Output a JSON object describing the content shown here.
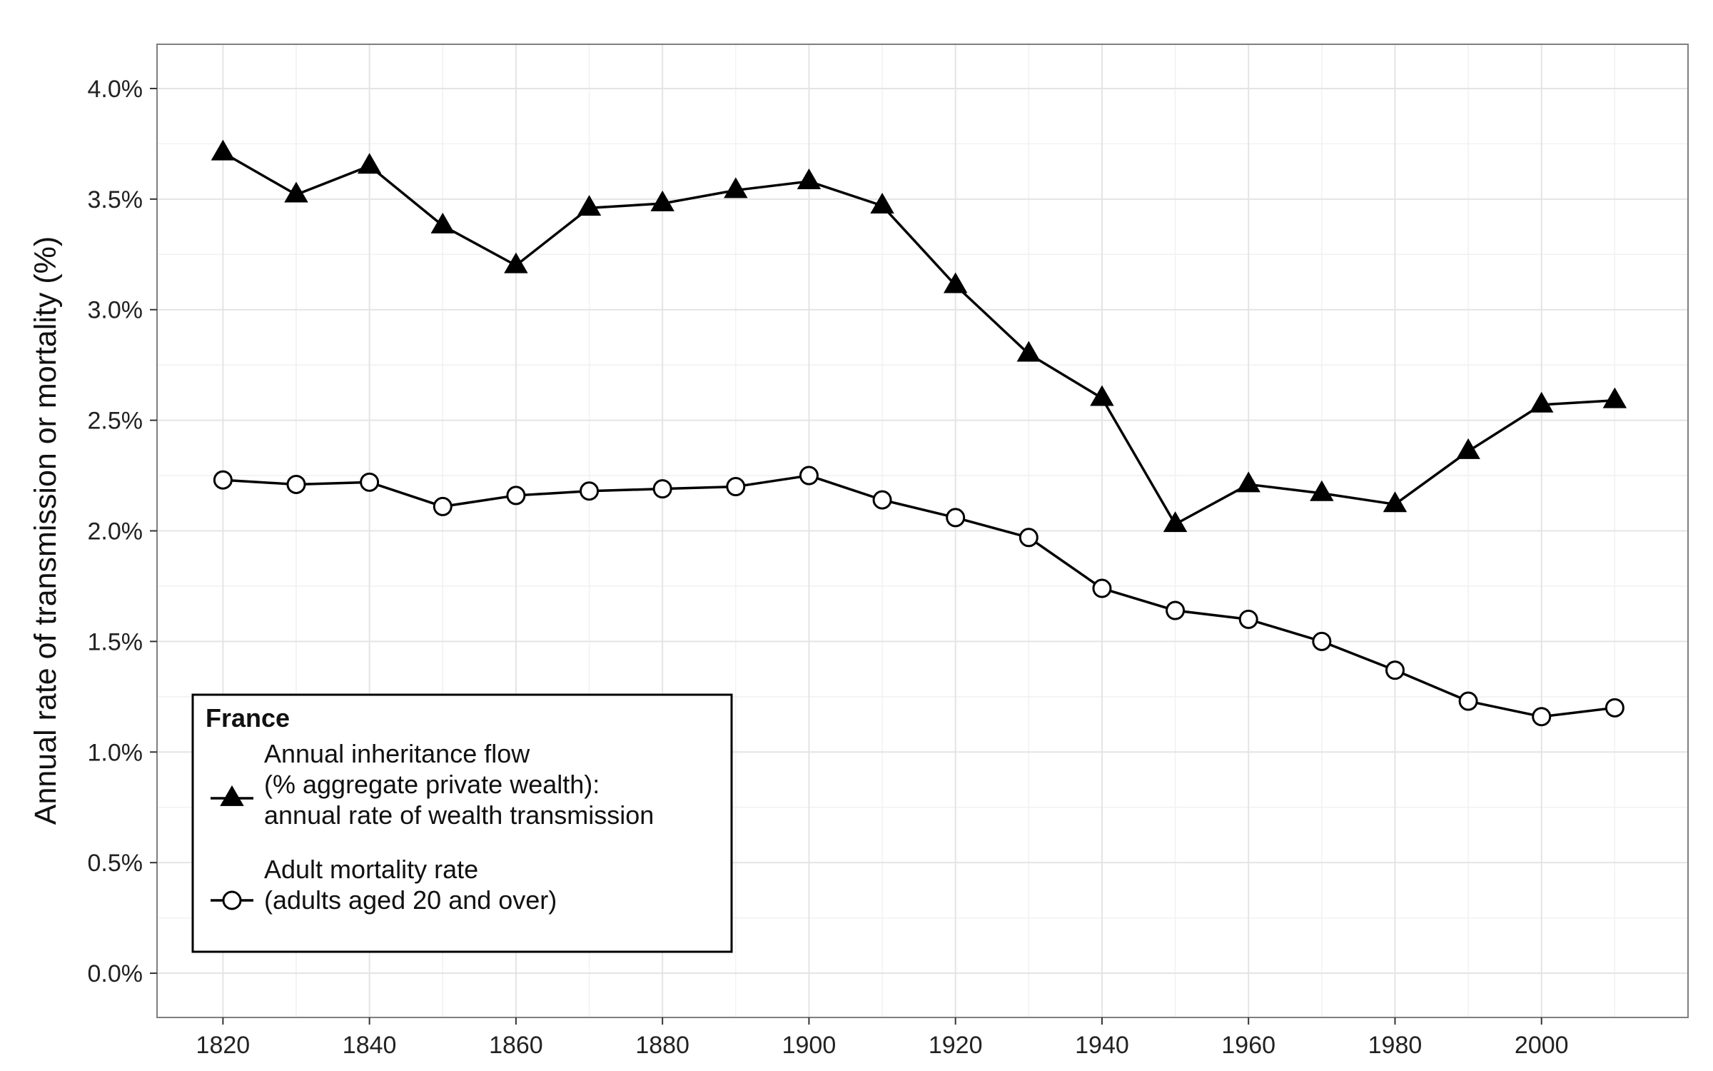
{
  "chart_data": {
    "type": "line",
    "x": [
      1820,
      1830,
      1840,
      1850,
      1860,
      1870,
      1880,
      1890,
      1900,
      1910,
      1920,
      1930,
      1940,
      1950,
      1960,
      1970,
      1980,
      1990,
      2000,
      2010
    ],
    "series": [
      {
        "name_lines": [
          "Annual inheritance flow",
          "(% aggregate private wealth):",
          "annual rate of wealth transmission"
        ],
        "marker": "filled-triangle",
        "values": [
          3.71,
          3.52,
          3.65,
          3.38,
          3.2,
          3.46,
          3.48,
          3.54,
          3.58,
          3.47,
          3.11,
          2.8,
          2.6,
          2.03,
          2.21,
          2.17,
          2.12,
          2.36,
          2.57,
          2.59
        ]
      },
      {
        "name_lines": [
          "Adult mortality rate",
          "(adults aged 20 and over)"
        ],
        "marker": "open-circle",
        "values": [
          2.23,
          2.21,
          2.22,
          2.11,
          2.16,
          2.18,
          2.19,
          2.2,
          2.25,
          2.14,
          2.06,
          1.97,
          1.74,
          1.64,
          1.6,
          1.5,
          1.37,
          1.23,
          1.16,
          1.2
        ]
      }
    ],
    "ylabel": "Annual rate of transmission or mortality (%)",
    "xlabel": "",
    "ylim": [
      -0.2,
      4.2
    ],
    "xlim": [
      1811,
      2020
    ],
    "yticks": [
      0.0,
      0.5,
      1.0,
      1.5,
      2.0,
      2.5,
      3.0,
      3.5,
      4.0
    ],
    "ytick_labels": [
      "0.0%",
      "0.5%",
      "1.0%",
      "1.5%",
      "2.0%",
      "2.5%",
      "3.0%",
      "3.5%",
      "4.0%"
    ],
    "xticks": [
      1820,
      1840,
      1860,
      1880,
      1900,
      1920,
      1940,
      1960,
      1980,
      2000
    ],
    "xtick_labels": [
      "1820",
      "1840",
      "1860",
      "1880",
      "1900",
      "1920",
      "1940",
      "1960",
      "1980",
      "2000"
    ],
    "grid": true,
    "legend": {
      "title": "France",
      "placement": "bottom-left"
    },
    "colors": {
      "line": "#000000",
      "grid": "#e4e4e4",
      "panel_border": "#7f7f7f",
      "background": "#ffffff"
    }
  }
}
